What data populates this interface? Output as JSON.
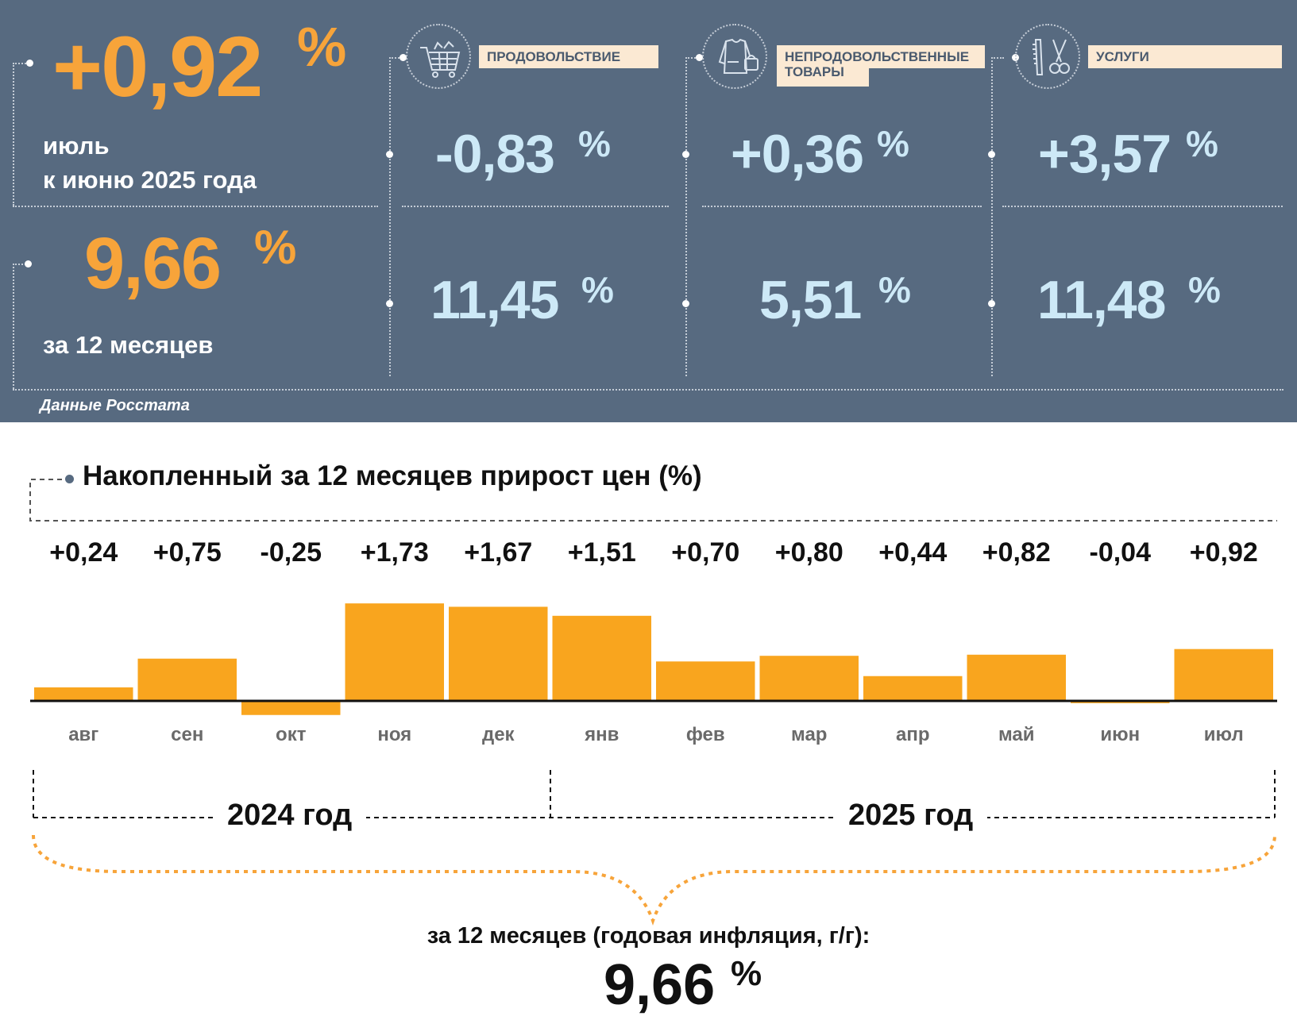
{
  "colors": {
    "panel": "#576a80",
    "orange": "#f7a43a",
    "light_blue": "#cde9f7",
    "bar": "#f9a51e",
    "label_bg": "#fbe9d3"
  },
  "headline": {
    "month_change": "+0,92",
    "month_pct": "%",
    "month_caption_line1": "июль",
    "month_caption_line2": "к июню 2025 года",
    "yoy_change": "9,66",
    "yoy_pct": "%",
    "yoy_caption": "за 12 месяцев",
    "source": "Данные Росстата"
  },
  "categories": [
    {
      "name": "ПРОДОВОЛЬСТВИЕ",
      "icon": "shopping-cart-icon",
      "month": "-0,83",
      "year": "11,45",
      "pct": "%"
    },
    {
      "name_line1": "НЕПРОДОВОЛЬСТВЕННЫЕ",
      "name_line2": "ТОВАРЫ",
      "icon": "clothes-bag-icon",
      "month": "+0,36",
      "year": "5,51",
      "pct": "%"
    },
    {
      "name": "УСЛУГИ",
      "icon": "comb-scissors-icon",
      "month": "+3,57",
      "year": "11,48",
      "pct": "%"
    }
  ],
  "chart_data": {
    "type": "bar",
    "title": "Накопленный за 12 месяцев прирост цен (%)",
    "categories": [
      "авг",
      "сен",
      "окт",
      "ноя",
      "дек",
      "янв",
      "фев",
      "мар",
      "апр",
      "май",
      "июн",
      "июл"
    ],
    "values": [
      0.24,
      0.75,
      -0.25,
      1.73,
      1.67,
      1.51,
      0.7,
      0.8,
      0.44,
      0.82,
      -0.04,
      0.92
    ],
    "value_labels": [
      "+0,24",
      "+0,75",
      "-0,25",
      "+1,73",
      "+1,67",
      "+1,51",
      "+0,70",
      "+0,80",
      "+0,44",
      "+0,82",
      "-0,04",
      "+0,92"
    ],
    "year_groups": [
      {
        "label": "2024 год",
        "months": 5
      },
      {
        "label": "2025 год",
        "months": 7
      }
    ],
    "summary_caption": "за 12 месяцев (годовая инфляция, г/г):",
    "summary_value": "9,66",
    "summary_pct": "%"
  }
}
